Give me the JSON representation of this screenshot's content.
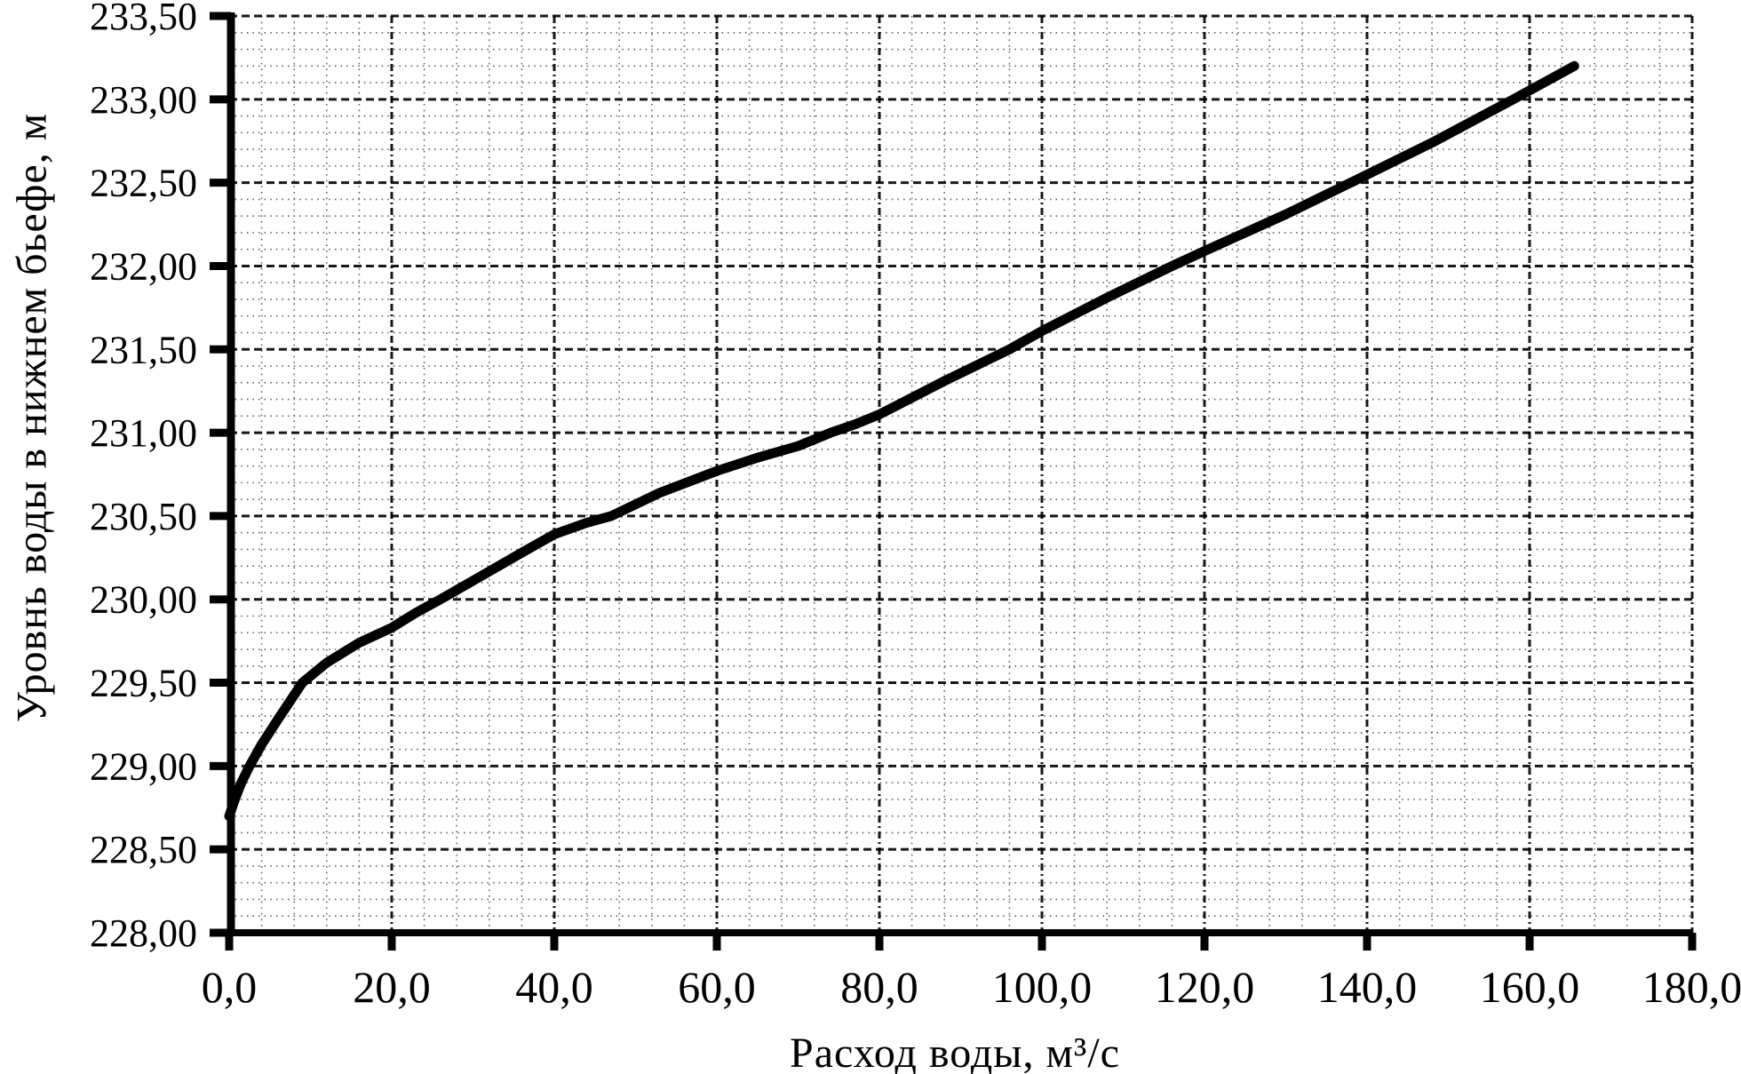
{
  "figure": {
    "background": "#ffffff",
    "ink": "#000000",
    "minor_grid_color": "#666666",
    "curve_color": "#000000"
  },
  "chart_data": {
    "type": "line",
    "title": "",
    "xlabel": "Расход воды, м³/с",
    "ylabel": "Уровнь воды в нижнем бьефе, м",
    "xlim": [
      0,
      180
    ],
    "ylim": [
      228.0,
      233.5
    ],
    "x_major_step": 20,
    "x_minor_step": 4,
    "y_major_step": 0.5,
    "y_minor_step": 0.1,
    "grid": "major-dashed-and-minor-dotted",
    "legend": "none",
    "x_ticks": [
      {
        "v": 0,
        "label": "0,0"
      },
      {
        "v": 20,
        "label": "20,0"
      },
      {
        "v": 40,
        "label": "40,0"
      },
      {
        "v": 60,
        "label": "60,0"
      },
      {
        "v": 80,
        "label": "80,0"
      },
      {
        "v": 100,
        "label": "100,0"
      },
      {
        "v": 120,
        "label": "120,0"
      },
      {
        "v": 140,
        "label": "140,0"
      },
      {
        "v": 160,
        "label": "160,0"
      },
      {
        "v": 180,
        "label": "180,0"
      }
    ],
    "y_ticks": [
      {
        "v": 228.0,
        "label": "228,00"
      },
      {
        "v": 228.5,
        "label": "228,50"
      },
      {
        "v": 229.0,
        "label": "229,00"
      },
      {
        "v": 229.5,
        "label": "229,50"
      },
      {
        "v": 230.0,
        "label": "230,00"
      },
      {
        "v": 230.5,
        "label": "230,50"
      },
      {
        "v": 231.0,
        "label": "231,00"
      },
      {
        "v": 231.5,
        "label": "231,50"
      },
      {
        "v": 232.0,
        "label": "232,00"
      },
      {
        "v": 232.5,
        "label": "232,50"
      },
      {
        "v": 233.0,
        "label": "233,00"
      },
      {
        "v": 233.5,
        "label": "233,50"
      }
    ],
    "series": [
      {
        "name": "tailwater-rating-curve",
        "color": "#000000",
        "stroke_width": 11,
        "points": [
          [
            0,
            228.7
          ],
          [
            0.7,
            228.8
          ],
          [
            1.5,
            228.9
          ],
          [
            2.5,
            229.0
          ],
          [
            4,
            229.13
          ],
          [
            6,
            229.28
          ],
          [
            7.5,
            229.39
          ],
          [
            9,
            229.5
          ],
          [
            12,
            229.62
          ],
          [
            16,
            229.74
          ],
          [
            20,
            229.83
          ],
          [
            23,
            229.92
          ],
          [
            26,
            230.0
          ],
          [
            31,
            230.14
          ],
          [
            36,
            230.28
          ],
          [
            40,
            230.39
          ],
          [
            44,
            230.46
          ],
          [
            47,
            230.5
          ],
          [
            53,
            230.64
          ],
          [
            60,
            230.77
          ],
          [
            65,
            230.85
          ],
          [
            70,
            230.92
          ],
          [
            74,
            231.0
          ],
          [
            77,
            231.05
          ],
          [
            80,
            231.11
          ],
          [
            88,
            231.31
          ],
          [
            96,
            231.5
          ],
          [
            100,
            231.61
          ],
          [
            108,
            231.81
          ],
          [
            116,
            232.0
          ],
          [
            120,
            232.09
          ],
          [
            130,
            232.31
          ],
          [
            138,
            232.5
          ],
          [
            148,
            232.74
          ],
          [
            158,
            233.0
          ],
          [
            165.5,
            233.2
          ]
        ]
      }
    ]
  }
}
